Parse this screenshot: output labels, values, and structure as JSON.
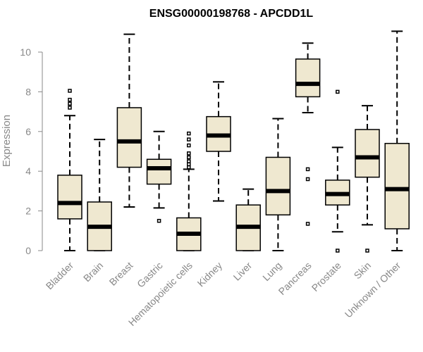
{
  "chart_data": {
    "type": "box",
    "title": "ENSG00000198768 - APCDD1L",
    "xlabel": "",
    "ylabel": "Expression",
    "ylim": [
      0,
      11.2
    ],
    "yticks": [
      0,
      2,
      4,
      6,
      8,
      10
    ],
    "grid": false,
    "box_fill": "#EFE8D0",
    "categories": [
      "Bladder",
      "Brain",
      "Breast",
      "Gastric",
      "Hematopoietic cells",
      "Kidney",
      "Liver",
      "Lung",
      "Pancreas",
      "Prostate",
      "Skin",
      "Unknown / Other"
    ],
    "boxes": [
      {
        "min": 0,
        "q1": 1.6,
        "median": 2.4,
        "q3": 3.8,
        "max": 6.8,
        "outliers": [
          7.2,
          7.4,
          7.6,
          8.05
        ]
      },
      {
        "min": 0,
        "q1": 0,
        "median": 1.2,
        "q3": 2.45,
        "max": 5.6,
        "outliers": []
      },
      {
        "min": 2.2,
        "q1": 4.2,
        "median": 5.5,
        "q3": 7.2,
        "max": 10.9,
        "outliers": []
      },
      {
        "min": 2.15,
        "q1": 3.35,
        "median": 4.15,
        "q3": 4.6,
        "max": 6.0,
        "outliers": [
          1.5
        ]
      },
      {
        "min": 0,
        "q1": 0,
        "median": 0.85,
        "q3": 1.65,
        "max": 4.1,
        "outliers": [
          4.2,
          4.35,
          4.5,
          4.7,
          4.9,
          5.3,
          5.6,
          5.9
        ]
      },
      {
        "min": 2.5,
        "q1": 5.0,
        "median": 5.8,
        "q3": 6.75,
        "max": 8.5,
        "outliers": []
      },
      {
        "min": 0,
        "q1": 0,
        "median": 1.2,
        "q3": 2.3,
        "max": 3.1,
        "outliers": []
      },
      {
        "min": 0,
        "q1": 1.8,
        "median": 3.0,
        "q3": 4.7,
        "max": 6.65,
        "outliers": []
      },
      {
        "min": 6.95,
        "q1": 7.75,
        "median": 8.4,
        "q3": 9.65,
        "max": 10.45,
        "outliers": [
          1.35,
          3.6,
          4.1
        ]
      },
      {
        "min": 0.95,
        "q1": 2.3,
        "median": 2.85,
        "q3": 3.55,
        "max": 5.2,
        "outliers": [
          0,
          8.0
        ]
      },
      {
        "min": 1.3,
        "q1": 3.7,
        "median": 4.7,
        "q3": 6.1,
        "max": 7.3,
        "outliers": [
          0
        ]
      },
      {
        "min": 0,
        "q1": 1.1,
        "median": 3.1,
        "q3": 5.4,
        "max": 11.05,
        "outliers": []
      }
    ]
  }
}
